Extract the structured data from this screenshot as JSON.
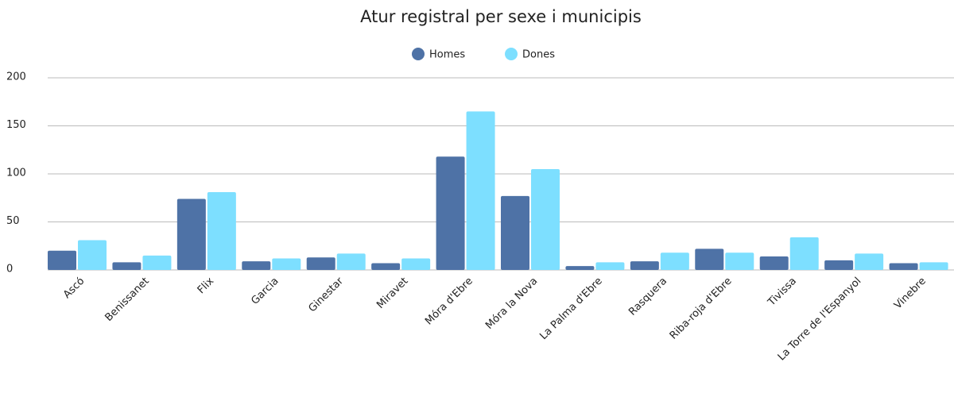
{
  "chart_data": {
    "type": "bar",
    "title": "Atur registral per sexe i municipis",
    "categories": [
      "Ascó",
      "Benissanet",
      "Flix",
      "Garcia",
      "Ginestar",
      "Miravet",
      "Móra d'Ebre",
      "Móra la Nova",
      "La Palma d'Ebre",
      "Rasquera",
      "Riba-roja d'Ebre",
      "Tivissa",
      "La Torre de l'Espanyol",
      "Vinebre"
    ],
    "series": [
      {
        "name": "Homes",
        "color": "#4e72a6",
        "values": [
          20,
          8,
          74,
          9,
          13,
          7,
          118,
          77,
          4,
          9,
          22,
          14,
          10,
          7
        ]
      },
      {
        "name": "Dones",
        "color": "#7ddfff",
        "values": [
          31,
          15,
          81,
          12,
          17,
          12,
          165,
          105,
          8,
          18,
          18,
          34,
          17,
          8
        ]
      }
    ],
    "ylim": [
      0,
      200
    ],
    "yticks": [
      0,
      50,
      100,
      150,
      200
    ],
    "grid": true,
    "legend": "top"
  }
}
